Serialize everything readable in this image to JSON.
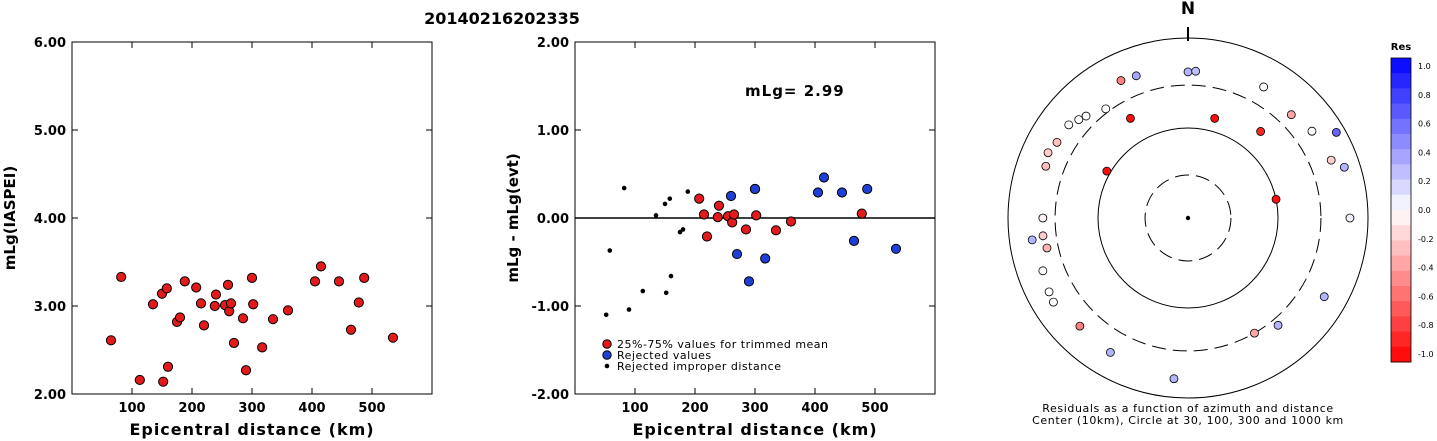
{
  "page_title": "20140216202335",
  "chart_data": [
    {
      "type": "scatter",
      "title": "",
      "xlabel": "Epicentral distance (km)",
      "ylabel": "mLg(IASPEI)",
      "xlim": [
        0,
        600
      ],
      "ylim": [
        2.0,
        6.0
      ],
      "x_ticks": [
        "100",
        "200",
        "300",
        "400",
        "500"
      ],
      "x_tick_values": [
        100,
        200,
        300,
        400,
        500
      ],
      "y_ticks": [
        "2.00",
        "3.00",
        "4.00",
        "5.00",
        "6.00"
      ],
      "y_tick_values": [
        2,
        3,
        4,
        5,
        6
      ],
      "grid": false,
      "series": [
        {
          "color": "#e31a1c",
          "points": [
            [
              65,
              2.61
            ],
            [
              82,
              3.33
            ],
            [
              113,
              2.16
            ],
            [
              135,
              3.02
            ],
            [
              150,
              3.14
            ],
            [
              152,
              2.14
            ],
            [
              158,
              3.2
            ],
            [
              160,
              2.31
            ],
            [
              175,
              2.82
            ],
            [
              180,
              2.87
            ],
            [
              188,
              3.28
            ],
            [
              207,
              3.21
            ],
            [
              215,
              3.03
            ],
            [
              220,
              2.78
            ],
            [
              238,
              3.0
            ],
            [
              240,
              3.13
            ],
            [
              255,
              3.01
            ],
            [
              260,
              3.24
            ],
            [
              262,
              2.94
            ],
            [
              265,
              3.03
            ],
            [
              270,
              2.58
            ],
            [
              285,
              2.86
            ],
            [
              290,
              2.27
            ],
            [
              300,
              3.32
            ],
            [
              302,
              3.02
            ],
            [
              317,
              2.53
            ],
            [
              335,
              2.85
            ],
            [
              360,
              2.95
            ],
            [
              405,
              3.28
            ],
            [
              415,
              3.45
            ],
            [
              445,
              3.28
            ],
            [
              465,
              2.73
            ],
            [
              478,
              3.04
            ],
            [
              487,
              3.32
            ],
            [
              535,
              2.64
            ]
          ]
        }
      ]
    },
    {
      "type": "scatter",
      "title": "",
      "annotation": "mLg= 2.99",
      "xlabel": "Epicentral distance (km)",
      "ylabel": "mLg - mLg(evt)",
      "xlim": [
        0,
        600
      ],
      "ylim": [
        -2.0,
        2.0
      ],
      "x_ticks": [
        "100",
        "200",
        "300",
        "400",
        "500"
      ],
      "x_tick_values": [
        100,
        200,
        300,
        400,
        500
      ],
      "y_ticks": [
        "-2.00",
        "-1.00",
        "0.00",
        "1.00",
        "2.00"
      ],
      "y_tick_values": [
        -2,
        -1,
        0,
        1,
        2
      ],
      "reference_line": 0,
      "grid": false,
      "legend_placement": "bottom-left",
      "series": [
        {
          "name": "25%-75% values for trimmed mean",
          "color": "#e31a1c",
          "marker": "circle",
          "points": [
            [
              207,
              0.22
            ],
            [
              215,
              0.04
            ],
            [
              220,
              -0.21
            ],
            [
              238,
              0.01
            ],
            [
              240,
              0.14
            ],
            [
              255,
              0.02
            ],
            [
              262,
              -0.05
            ],
            [
              265,
              0.04
            ],
            [
              285,
              -0.13
            ],
            [
              300,
              0.33
            ],
            [
              302,
              0.03
            ],
            [
              335,
              -0.14
            ],
            [
              360,
              -0.04
            ],
            [
              478,
              0.05
            ]
          ]
        },
        {
          "name": "Rejected values",
          "color": "#1f3fd6",
          "marker": "circle",
          "points": [
            [
              260,
              0.25
            ],
            [
              270,
              -0.41
            ],
            [
              290,
              -0.72
            ],
            [
              300,
              0.33
            ],
            [
              317,
              -0.46
            ],
            [
              405,
              0.29
            ],
            [
              415,
              0.46
            ],
            [
              445,
              0.29
            ],
            [
              465,
              -0.26
            ],
            [
              487,
              0.33
            ],
            [
              535,
              -0.35
            ]
          ]
        },
        {
          "name": "Rejected improper distance",
          "color": "#000000",
          "marker": "dot",
          "points": [
            [
              52,
              -1.1
            ],
            [
              58,
              -0.37
            ],
            [
              82,
              0.34
            ],
            [
              90,
              -1.04
            ],
            [
              113,
              -0.83
            ],
            [
              135,
              0.03
            ],
            [
              150,
              0.16
            ],
            [
              152,
              -0.85
            ],
            [
              158,
              0.22
            ],
            [
              160,
              -0.66
            ],
            [
              175,
              -0.16
            ],
            [
              180,
              -0.13
            ],
            [
              188,
              0.3
            ]
          ]
        }
      ]
    },
    {
      "type": "polar-scatter",
      "title": "",
      "north_label": "N",
      "caption_line1": "Residuals as a function of azimuth and distance",
      "caption_line2": "Center (10km), Circle at 30, 100, 300 and 1000 km",
      "rings_km": [
        30,
        100,
        300,
        1000
      ],
      "rings_style": [
        "dashed",
        "solid",
        "dashed",
        "solid"
      ],
      "colorbar": {
        "title": "Res",
        "ticks": [
          "1.0",
          "0.8",
          "0.6",
          "0.4",
          "0.2",
          "0.0",
          "-0.2",
          "-0.4",
          "-0.6",
          "-0.8",
          "-1.0"
        ],
        "range": [
          -1.0,
          1.0
        ],
        "positive_color": "#0000ff",
        "negative_color": "#ff0000"
      },
      "points": [
        {
          "azimuth_deg": 330,
          "distance_km": 190,
          "residual": -0.95
        },
        {
          "azimuth_deg": 15,
          "distance_km": 140,
          "residual": -0.95
        },
        {
          "azimuth_deg": 40,
          "distance_km": 180,
          "residual": -0.85
        },
        {
          "azimuth_deg": 78,
          "distance_km": 100,
          "residual": -0.95
        },
        {
          "azimuth_deg": 300,
          "distance_km": 110,
          "residual": -0.95
        },
        {
          "azimuth_deg": 0,
          "distance_km": 420,
          "residual": 0.3
        },
        {
          "azimuth_deg": 334,
          "distance_km": 500,
          "residual": -0.5
        },
        {
          "azimuth_deg": 340,
          "distance_km": 480,
          "residual": 0.35
        },
        {
          "azimuth_deg": 323,
          "distance_km": 330,
          "residual": 0.0
        },
        {
          "azimuth_deg": 315,
          "distance_km": 400,
          "residual": 0.0
        },
        {
          "azimuth_deg": 312,
          "distance_km": 430,
          "residual": 0.0
        },
        {
          "azimuth_deg": 308,
          "distance_km": 480,
          "residual": 0.0
        },
        {
          "azimuth_deg": 300,
          "distance_km": 480,
          "residual": -0.25
        },
        {
          "azimuth_deg": 295,
          "distance_km": 520,
          "residual": -0.2
        },
        {
          "azimuth_deg": 290,
          "distance_km": 480,
          "residual": -0.25
        },
        {
          "azimuth_deg": 270,
          "distance_km": 410,
          "residual": -0.05
        },
        {
          "azimuth_deg": 262,
          "distance_km": 560,
          "residual": 0.3
        },
        {
          "azimuth_deg": 263,
          "distance_km": 420,
          "residual": -0.2
        },
        {
          "azimuth_deg": 258,
          "distance_km": 400,
          "residual": -0.3
        },
        {
          "azimuth_deg": 250,
          "distance_km": 520,
          "residual": 0.0
        },
        {
          "azimuth_deg": 242,
          "distance_km": 560,
          "residual": 0.0
        },
        {
          "azimuth_deg": 238,
          "distance_km": 580,
          "residual": 0.0
        },
        {
          "azimuth_deg": 225,
          "distance_km": 500,
          "residual": -0.5
        },
        {
          "azimuth_deg": 210,
          "distance_km": 530,
          "residual": 0.3
        },
        {
          "azimuth_deg": 185,
          "distance_km": 620,
          "residual": 0.3
        },
        {
          "azimuth_deg": 150,
          "distance_km": 300,
          "residual": -0.35
        },
        {
          "azimuth_deg": 140,
          "distance_km": 360,
          "residual": 0.3
        },
        {
          "azimuth_deg": 120,
          "distance_km": 560,
          "residual": 0.3
        },
        {
          "azimuth_deg": 90,
          "distance_km": 630,
          "residual": 0.05
        },
        {
          "azimuth_deg": 72,
          "distance_km": 670,
          "residual": 0.3
        },
        {
          "azimuth_deg": 68,
          "distance_km": 520,
          "residual": -0.2
        },
        {
          "azimuth_deg": 60,
          "distance_km": 800,
          "residual": 0.6
        },
        {
          "azimuth_deg": 55,
          "distance_km": 480,
          "residual": 0.0
        },
        {
          "azimuth_deg": 45,
          "distance_km": 420,
          "residual": -0.35
        },
        {
          "azimuth_deg": 30,
          "distance_km": 480,
          "residual": 0.0
        },
        {
          "azimuth_deg": 3,
          "distance_km": 430,
          "residual": 0.25
        }
      ]
    }
  ]
}
